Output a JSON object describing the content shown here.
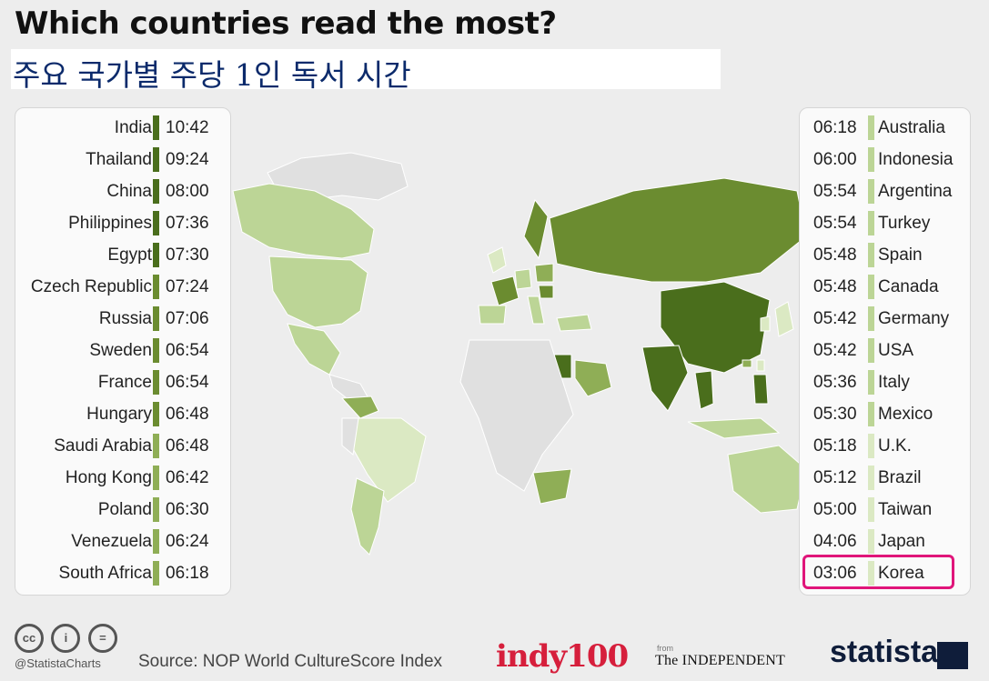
{
  "title": "Which countries read the most?",
  "subtitle": "주요 국가별 주당 1인 독서 시간",
  "colors": {
    "darkest": "#4a6e1c",
    "dark": "#6b8c30",
    "medium": "#8fae56",
    "light": "#bcd596",
    "lightest": "#dbe9c3",
    "nodata": "#e0e0e0",
    "highlight": "#e0157a"
  },
  "chart_data": {
    "type": "table",
    "rows_left": [
      {
        "country": "India",
        "time": "10:42",
        "hours": 10.7,
        "tier": "darkest"
      },
      {
        "country": "Thailand",
        "time": "09:24",
        "hours": 9.4,
        "tier": "darkest"
      },
      {
        "country": "China",
        "time": "08:00",
        "hours": 8.0,
        "tier": "darkest"
      },
      {
        "country": "Philippines",
        "time": "07:36",
        "hours": 7.6,
        "tier": "darkest"
      },
      {
        "country": "Egypt",
        "time": "07:30",
        "hours": 7.5,
        "tier": "darkest"
      },
      {
        "country": "Czech Republic",
        "time": "07:24",
        "hours": 7.4,
        "tier": "dark"
      },
      {
        "country": "Russia",
        "time": "07:06",
        "hours": 7.1,
        "tier": "dark"
      },
      {
        "country": "Sweden",
        "time": "06:54",
        "hours": 6.9,
        "tier": "dark"
      },
      {
        "country": "France",
        "time": "06:54",
        "hours": 6.9,
        "tier": "dark"
      },
      {
        "country": "Hungary",
        "time": "06:48",
        "hours": 6.8,
        "tier": "dark"
      },
      {
        "country": "Saudi Arabia",
        "time": "06:48",
        "hours": 6.8,
        "tier": "medium"
      },
      {
        "country": "Hong Kong",
        "time": "06:42",
        "hours": 6.7,
        "tier": "medium"
      },
      {
        "country": "Poland",
        "time": "06:30",
        "hours": 6.5,
        "tier": "medium"
      },
      {
        "country": "Venezuela",
        "time": "06:24",
        "hours": 6.4,
        "tier": "medium"
      },
      {
        "country": "South Africa",
        "time": "06:18",
        "hours": 6.3,
        "tier": "medium"
      }
    ],
    "rows_right": [
      {
        "country": "Australia",
        "time": "06:18",
        "hours": 6.3,
        "tier": "light"
      },
      {
        "country": "Indonesia",
        "time": "06:00",
        "hours": 6.0,
        "tier": "light"
      },
      {
        "country": "Argentina",
        "time": "05:54",
        "hours": 5.9,
        "tier": "light"
      },
      {
        "country": "Turkey",
        "time": "05:54",
        "hours": 5.9,
        "tier": "light"
      },
      {
        "country": "Spain",
        "time": "05:48",
        "hours": 5.8,
        "tier": "light"
      },
      {
        "country": "Canada",
        "time": "05:48",
        "hours": 5.8,
        "tier": "light"
      },
      {
        "country": "Germany",
        "time": "05:42",
        "hours": 5.7,
        "tier": "light"
      },
      {
        "country": "USA",
        "time": "05:42",
        "hours": 5.7,
        "tier": "light"
      },
      {
        "country": "Italy",
        "time": "05:36",
        "hours": 5.6,
        "tier": "light"
      },
      {
        "country": "Mexico",
        "time": "05:30",
        "hours": 5.5,
        "tier": "light"
      },
      {
        "country": "U.K.",
        "time": "05:18",
        "hours": 5.3,
        "tier": "lightest"
      },
      {
        "country": "Brazil",
        "time": "05:12",
        "hours": 5.2,
        "tier": "lightest"
      },
      {
        "country": "Taiwan",
        "time": "05:00",
        "hours": 5.0,
        "tier": "lightest"
      },
      {
        "country": "Japan",
        "time": "04:06",
        "hours": 4.1,
        "tier": "lightest"
      },
      {
        "country": "Korea",
        "time": "03:06",
        "hours": 3.1,
        "tier": "lightest",
        "highlighted": true
      }
    ]
  },
  "footer": {
    "cc_icons": [
      "cc-icon",
      "person-icon",
      "equals-icon"
    ],
    "cc_glyphs": [
      "cc",
      "i",
      "="
    ],
    "handle": "@StatistaCharts",
    "source": "Source: NOP World CultureScore Index",
    "indy": "indy100",
    "from_label": "from",
    "independent": "The INDEPENDENT",
    "statista": "statista"
  }
}
